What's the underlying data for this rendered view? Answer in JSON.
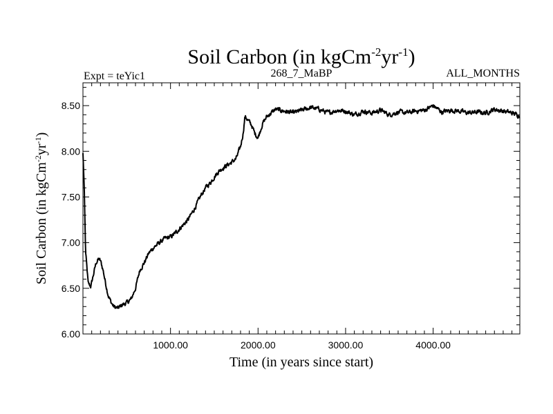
{
  "chart_data": {
    "type": "line",
    "title": {
      "base": "Soil Carbon (in kgCm",
      "sup1": "-2",
      "mid": "yr",
      "sup2": "-1",
      "end": ")"
    },
    "subtitle_left": "Expt = teYic1",
    "subtitle_center": "268_7_MaBP",
    "subtitle_right": "ALL_MONTHS",
    "xlabel": "Time (in years since start)",
    "ylabel": {
      "base": "Soil Carbon (in kgCm",
      "sup1": "-2",
      "mid": "yr",
      "sup2": "-1",
      "end": ")"
    },
    "xlim": [
      0,
      4990
    ],
    "ylim": [
      6.0,
      8.75
    ],
    "x_ticks": [
      {
        "value": 1000,
        "label": "1000.00"
      },
      {
        "value": 2000,
        "label": "2000.00"
      },
      {
        "value": 3000,
        "label": "3000.00"
      },
      {
        "value": 4000,
        "label": "4000.00"
      }
    ],
    "y_ticks": [
      {
        "value": 6.0,
        "label": "6.00"
      },
      {
        "value": 6.5,
        "label": "6.50"
      },
      {
        "value": 7.0,
        "label": "7.00"
      },
      {
        "value": 7.5,
        "label": "7.50"
      },
      {
        "value": 8.0,
        "label": "8.00"
      },
      {
        "value": 8.5,
        "label": "8.50"
      }
    ],
    "series": [
      {
        "name": "Soil Carbon",
        "color": "#000000",
        "noise": 0.02,
        "x": [
          0,
          15,
          30,
          60,
          90,
          120,
          150,
          180,
          200,
          230,
          260,
          290,
          320,
          350,
          400,
          450,
          500,
          550,
          600,
          650,
          700,
          750,
          800,
          850,
          900,
          950,
          1000,
          1050,
          1100,
          1150,
          1200,
          1250,
          1300,
          1350,
          1400,
          1450,
          1500,
          1550,
          1600,
          1650,
          1700,
          1750,
          1800,
          1830,
          1850,
          1870,
          1900,
          1930,
          1960,
          2000,
          2050,
          2100,
          2150,
          2200,
          2300,
          2400,
          2500,
          2600,
          2700,
          2800,
          2900,
          3000,
          3100,
          3200,
          3300,
          3400,
          3500,
          3600,
          3700,
          3800,
          3900,
          4000,
          4100,
          4200,
          4300,
          4400,
          4500,
          4600,
          4700,
          4800,
          4900,
          4990
        ],
        "values": [
          7.98,
          7.6,
          6.9,
          6.55,
          6.52,
          6.65,
          6.78,
          6.82,
          6.8,
          6.7,
          6.55,
          6.42,
          6.35,
          6.3,
          6.28,
          6.32,
          6.34,
          6.38,
          6.5,
          6.7,
          6.78,
          6.88,
          6.94,
          6.98,
          7.02,
          7.05,
          7.06,
          7.1,
          7.15,
          7.2,
          7.25,
          7.33,
          7.42,
          7.52,
          7.6,
          7.65,
          7.72,
          7.78,
          7.82,
          7.85,
          7.88,
          7.92,
          8.05,
          8.2,
          8.38,
          8.36,
          8.32,
          8.28,
          8.2,
          8.15,
          8.3,
          8.38,
          8.42,
          8.46,
          8.44,
          8.42,
          8.45,
          8.48,
          8.46,
          8.42,
          8.45,
          8.44,
          8.4,
          8.44,
          8.42,
          8.45,
          8.4,
          8.43,
          8.42,
          8.44,
          8.45,
          8.5,
          8.43,
          8.45,
          8.44,
          8.42,
          8.43,
          8.42,
          8.46,
          8.44,
          8.42,
          8.39
        ]
      }
    ]
  }
}
